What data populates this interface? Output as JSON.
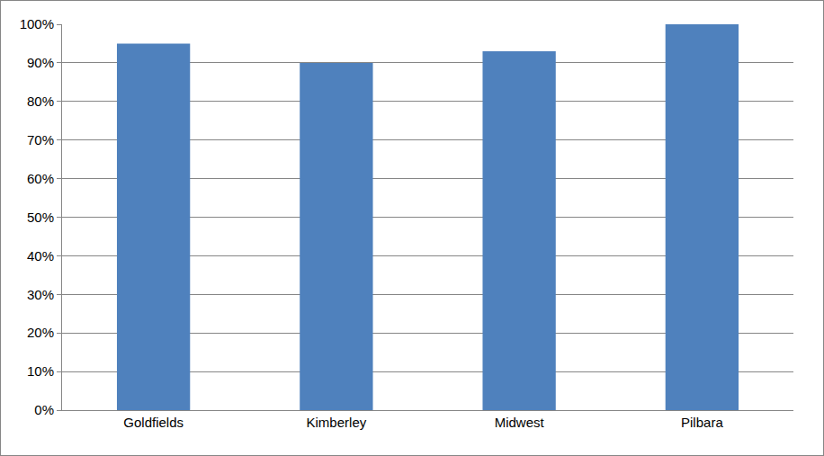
{
  "chart_data": {
    "type": "bar",
    "categories": [
      "Goldfields",
      "Kimberley",
      "Midwest",
      "Pilbara"
    ],
    "values": [
      95,
      90,
      93,
      100
    ],
    "color": "#4f81bd",
    "ylim": [
      0,
      100
    ],
    "yticks": [
      {
        "value": 0,
        "label": "0%"
      },
      {
        "value": 10,
        "label": "10%"
      },
      {
        "value": 20,
        "label": "20%"
      },
      {
        "value": 30,
        "label": "30%"
      },
      {
        "value": 40,
        "label": "40%"
      },
      {
        "value": 50,
        "label": "50%"
      },
      {
        "value": 60,
        "label": "60%"
      },
      {
        "value": 70,
        "label": "70%"
      },
      {
        "value": 80,
        "label": "80%"
      },
      {
        "value": 90,
        "label": "90%"
      },
      {
        "value": 100,
        "label": "100%"
      }
    ],
    "grid": true
  }
}
